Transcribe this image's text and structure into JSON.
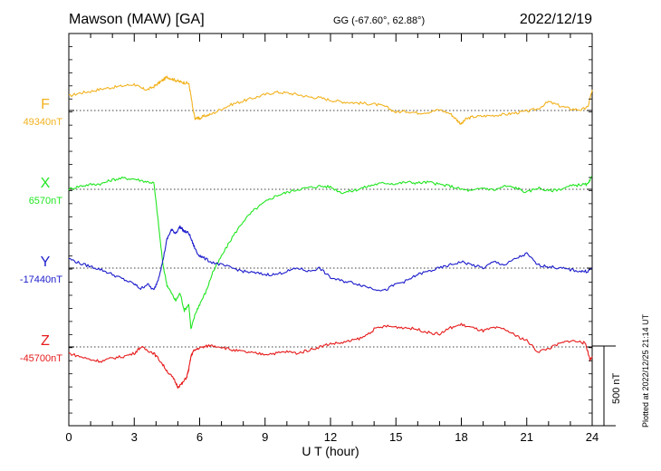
{
  "header": {
    "station": "Mawson (MAW)  [GA]",
    "coords": "GG (-67.60°,  62.88°)",
    "date": "2022/12/19"
  },
  "plotted_note": "Plotted at 2022/12/25 21:14 UT",
  "scale_bar": {
    "label": "500 nT",
    "value_nT": 500
  },
  "chart_data": {
    "type": "line",
    "xlabel": "U T (hour)",
    "xlim": [
      0,
      24
    ],
    "xticks": [
      0,
      3,
      6,
      9,
      12,
      15,
      18,
      21,
      24
    ],
    "series": [
      {
        "name": "F",
        "baseline_label": "49340nT",
        "baseline_nT": 49340,
        "color": "#f2b21e",
        "x": [
          0,
          0.5,
          1,
          1.5,
          2,
          2.5,
          3,
          3.3,
          3.6,
          3.9,
          4.1,
          4.3,
          4.5,
          4.7,
          4.9,
          5.1,
          5.3,
          5.5,
          5.6,
          5.7,
          5.8,
          5.9,
          6.0,
          6.2,
          6.5,
          7,
          7.5,
          8,
          8.5,
          9,
          9.5,
          10,
          10.5,
          11,
          11.5,
          12,
          12.5,
          13,
          13.5,
          14,
          14.5,
          15,
          15.5,
          16,
          16.5,
          17,
          17.5,
          17.8,
          18,
          18.2,
          18.5,
          19,
          19.5,
          20,
          20.5,
          21,
          21.5,
          22,
          22.5,
          23,
          23.5,
          23.8,
          24
        ],
        "values": [
          90,
          110,
          120,
          135,
          145,
          155,
          165,
          140,
          130,
          150,
          170,
          190,
          210,
          200,
          190,
          180,
          175,
          170,
          90,
          0,
          -55,
          -45,
          -50,
          -35,
          -25,
          10,
          40,
          60,
          80,
          100,
          115,
          110,
          100,
          85,
          80,
          65,
          55,
          50,
          45,
          40,
          25,
          -10,
          -5,
          -15,
          -10,
          5,
          -20,
          -60,
          -85,
          -55,
          -40,
          -35,
          -30,
          -25,
          -15,
          -5,
          10,
          55,
          30,
          10,
          5,
          20,
          130
        ]
      },
      {
        "name": "X",
        "baseline_label": "6570nT",
        "baseline_nT": 6570,
        "color": "#22e622",
        "x": [
          0,
          0.5,
          1,
          1.5,
          2,
          2.5,
          3,
          3.5,
          3.9,
          4.1,
          4.3,
          4.5,
          4.7,
          4.9,
          5.1,
          5.3,
          5.5,
          5.6,
          5.8,
          6.0,
          6.3,
          6.6,
          7,
          7.5,
          8,
          8.5,
          9,
          9.5,
          10,
          10.5,
          11,
          11.5,
          12,
          12.5,
          13,
          13.5,
          14,
          14.5,
          15,
          15.5,
          16,
          16.5,
          17,
          17.5,
          18,
          18.5,
          19,
          19.5,
          20,
          20.5,
          21,
          21.5,
          22,
          22.5,
          23,
          23.5,
          23.8,
          24
        ],
        "values": [
          0,
          20,
          30,
          35,
          60,
          70,
          65,
          50,
          40,
          -200,
          -460,
          -600,
          -650,
          -700,
          -650,
          -760,
          -720,
          -880,
          -780,
          -720,
          -640,
          -520,
          -420,
          -300,
          -200,
          -130,
          -80,
          -40,
          -20,
          0,
          10,
          20,
          15,
          -20,
          -10,
          10,
          30,
          40,
          35,
          45,
          40,
          45,
          30,
          20,
          0,
          -10,
          10,
          -5,
          20,
          10,
          -20,
          10,
          -10,
          0,
          20,
          30,
          30,
          80
        ]
      },
      {
        "name": "Y",
        "baseline_label": "-17440nT",
        "baseline_nT": -17440,
        "color": "#1c1ccc",
        "x": [
          0,
          0.5,
          1,
          1.5,
          2,
          2.5,
          3,
          3.3,
          3.6,
          3.9,
          4.1,
          4.3,
          4.5,
          4.7,
          4.9,
          5.1,
          5.3,
          5.5,
          5.7,
          5.9,
          6.1,
          6.5,
          7,
          7.5,
          8,
          8.5,
          9,
          9.5,
          10,
          10.5,
          11,
          11.5,
          12,
          12.5,
          13,
          13.5,
          14,
          14.5,
          15,
          15.5,
          16,
          16.5,
          17,
          17.5,
          18,
          18.5,
          19,
          19.5,
          20,
          20.5,
          21,
          21.5,
          22,
          22.5,
          23,
          23.5,
          23.8,
          24
        ],
        "values": [
          60,
          30,
          10,
          -10,
          -40,
          -70,
          -100,
          -130,
          -100,
          -140,
          -70,
          40,
          180,
          240,
          220,
          260,
          230,
          220,
          150,
          90,
          70,
          40,
          20,
          0,
          -20,
          -30,
          -40,
          -40,
          -20,
          0,
          -20,
          0,
          -60,
          -80,
          -90,
          -110,
          -130,
          -140,
          -100,
          -80,
          -40,
          -20,
          0,
          20,
          40,
          20,
          0,
          40,
          20,
          60,
          90,
          20,
          10,
          0,
          -10,
          -20,
          -20,
          0
        ]
      },
      {
        "name": "Z",
        "baseline_label": "-45700nT",
        "baseline_nT": -45700,
        "color": "#e61b1b",
        "x": [
          0,
          0.5,
          1,
          1.5,
          2,
          2.5,
          3,
          3.3,
          3.6,
          3.9,
          4.2,
          4.5,
          4.8,
          5.0,
          5.2,
          5.4,
          5.5,
          5.6,
          5.7,
          5.9,
          6.2,
          6.5,
          7,
          7.5,
          8,
          8.5,
          9,
          9.5,
          10,
          10.5,
          11,
          11.5,
          12,
          12.5,
          13,
          13.5,
          14,
          14.5,
          15,
          15.5,
          16,
          16.5,
          17,
          17.5,
          18,
          18.5,
          19,
          19.5,
          20,
          20.5,
          21,
          21.5,
          22,
          22.5,
          23,
          23.5,
          23.7,
          23.9,
          24
        ],
        "values": [
          -40,
          -60,
          -80,
          -90,
          -70,
          -60,
          -40,
          0,
          -20,
          -40,
          -90,
          -150,
          -200,
          -250,
          -230,
          -190,
          -140,
          -60,
          -30,
          -10,
          0,
          10,
          0,
          -20,
          -30,
          -40,
          -45,
          -40,
          -30,
          -40,
          -20,
          0,
          20,
          25,
          40,
          60,
          110,
          130,
          125,
          120,
          110,
          90,
          80,
          120,
          140,
          120,
          100,
          120,
          110,
          70,
          40,
          -30,
          -10,
          20,
          40,
          30,
          20,
          -80,
          -60
        ]
      }
    ],
    "grid": "baselines dotted"
  }
}
